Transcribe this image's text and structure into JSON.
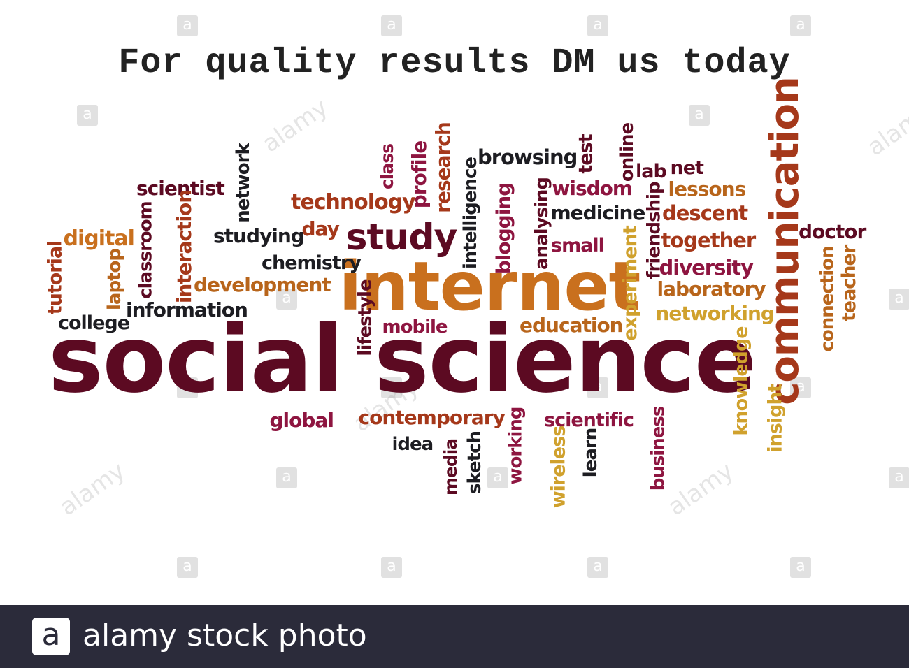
{
  "headline": "For quality results DM us today",
  "colors": {
    "maroon": "#5c0a22",
    "crimson": "#8e1540",
    "red": "#a5381a",
    "orange": "#c9701e",
    "gold": "#d0a12d",
    "dark": "#1d1d22",
    "amber": "#b8651b"
  },
  "words": [
    {
      "text": "social science",
      "color": "maroon"
    },
    {
      "text": "internet",
      "color": "orange"
    },
    {
      "text": "communication",
      "color": "red"
    },
    {
      "text": "study",
      "color": "maroon"
    },
    {
      "text": "scientist",
      "color": "maroon"
    },
    {
      "text": "network",
      "color": "dark"
    },
    {
      "text": "technology",
      "color": "red"
    },
    {
      "text": "class",
      "color": "crimson"
    },
    {
      "text": "profile",
      "color": "crimson"
    },
    {
      "text": "research",
      "color": "red"
    },
    {
      "text": "intelligence",
      "color": "dark"
    },
    {
      "text": "browsing",
      "color": "dark"
    },
    {
      "text": "test",
      "color": "maroon"
    },
    {
      "text": "online",
      "color": "maroon"
    },
    {
      "text": "lab",
      "color": "maroon"
    },
    {
      "text": "net",
      "color": "maroon"
    },
    {
      "text": "lessons",
      "color": "amber"
    },
    {
      "text": "wisdom",
      "color": "crimson"
    },
    {
      "text": "medicine",
      "color": "dark"
    },
    {
      "text": "descent",
      "color": "red"
    },
    {
      "text": "digital",
      "color": "orange"
    },
    {
      "text": "classroom",
      "color": "maroon"
    },
    {
      "text": "interaction",
      "color": "red"
    },
    {
      "text": "studying",
      "color": "dark"
    },
    {
      "text": "day",
      "color": "red"
    },
    {
      "text": "blogging",
      "color": "crimson"
    },
    {
      "text": "analysing",
      "color": "maroon"
    },
    {
      "text": "small",
      "color": "crimson"
    },
    {
      "text": "friendship",
      "color": "maroon"
    },
    {
      "text": "together",
      "color": "red"
    },
    {
      "text": "doctor",
      "color": "maroon"
    },
    {
      "text": "tutorial",
      "color": "red"
    },
    {
      "text": "laptop",
      "color": "amber"
    },
    {
      "text": "chemistry",
      "color": "dark"
    },
    {
      "text": "experiment",
      "color": "gold"
    },
    {
      "text": "diversity",
      "color": "crimson"
    },
    {
      "text": "connection",
      "color": "amber"
    },
    {
      "text": "teacher",
      "color": "amber"
    },
    {
      "text": "development",
      "color": "amber"
    },
    {
      "text": "laboratory",
      "color": "amber"
    },
    {
      "text": "information",
      "color": "dark"
    },
    {
      "text": "lifestyle",
      "color": "maroon"
    },
    {
      "text": "networking",
      "color": "gold"
    },
    {
      "text": "college",
      "color": "dark"
    },
    {
      "text": "mobile",
      "color": "crimson"
    },
    {
      "text": "education",
      "color": "amber"
    },
    {
      "text": "knowledge",
      "color": "gold"
    },
    {
      "text": "insight",
      "color": "gold"
    },
    {
      "text": "global",
      "color": "crimson"
    },
    {
      "text": "contemporary",
      "color": "red"
    },
    {
      "text": "working",
      "color": "crimson"
    },
    {
      "text": "scientific",
      "color": "crimson"
    },
    {
      "text": "business",
      "color": "crimson"
    },
    {
      "text": "idea",
      "color": "dark"
    },
    {
      "text": "media",
      "color": "maroon"
    },
    {
      "text": "sketch",
      "color": "dark"
    },
    {
      "text": "wireless",
      "color": "gold"
    },
    {
      "text": "learn",
      "color": "dark"
    }
  ],
  "watermark": {
    "badge_letter": "a",
    "brand": "alamy"
  },
  "footer": {
    "logo_letter": "a",
    "text": "alamy stock photo"
  }
}
